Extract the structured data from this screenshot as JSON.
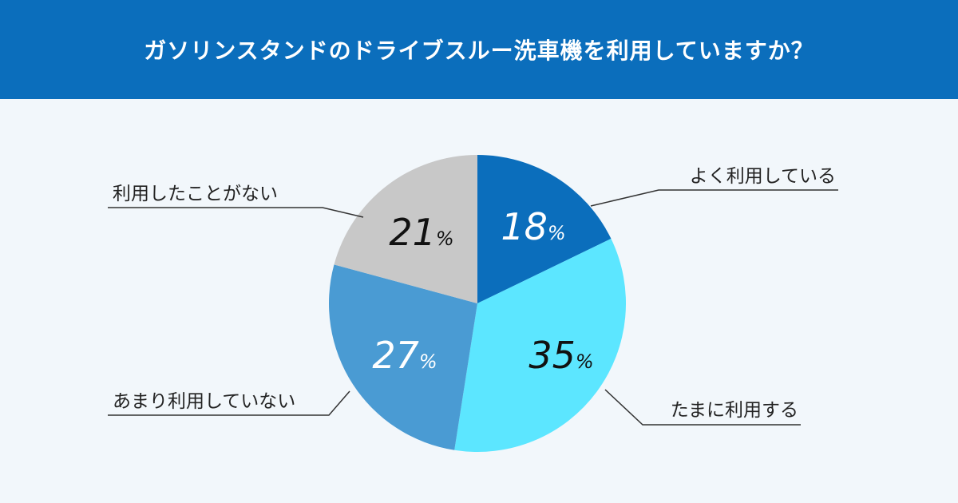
{
  "header": {
    "title": "ガソリンスタンドのドライブスルー洗車機を利用していますか？",
    "background": "#0b6ebc"
  },
  "chart_data": {
    "type": "pie",
    "title": "ガソリンスタンドのドライブスルー洗車機を利用していますか？",
    "unit": "%",
    "start": "12 o'clock, clockwise",
    "slices": [
      {
        "label": "よく利用している",
        "value": 18,
        "color": "#0b6ebc",
        "text_color": "#ffffff"
      },
      {
        "label": "たまに利用する",
        "value": 35,
        "color": "#5ce6ff",
        "text_color": "#111111"
      },
      {
        "label": "あまり利用していない",
        "value": 27,
        "color": "#4a9bd3",
        "text_color": "#ffffff"
      },
      {
        "label": "利用したことがない",
        "value": 21,
        "color": "#c8c8c8",
        "text_color": "#111111"
      }
    ]
  }
}
